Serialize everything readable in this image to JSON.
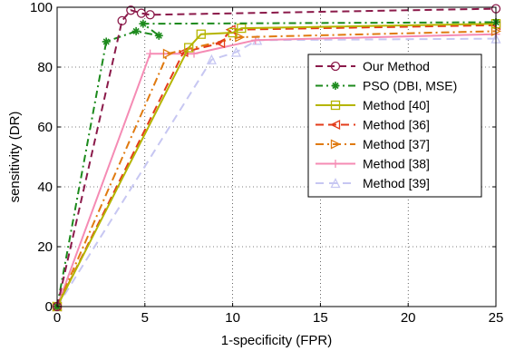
{
  "chart_data": {
    "type": "line",
    "xlabel": "1-specificity (FPR)",
    "ylabel": "sensitivity (DR)",
    "xlim": [
      0,
      25
    ],
    "ylim": [
      0,
      100
    ],
    "xticks": [
      0,
      5,
      10,
      15,
      20,
      25
    ],
    "yticks": [
      0,
      20,
      40,
      60,
      80,
      100
    ],
    "grid": true,
    "legend_position": "right",
    "series": [
      {
        "name": "Our Method",
        "color": "#8b1a4a",
        "dash": "8,5",
        "marker": "circle",
        "x": [
          0,
          3.7,
          4.2,
          4.8,
          5.3,
          25
        ],
        "y": [
          0,
          95.5,
          99,
          98,
          97.5,
          99.5
        ]
      },
      {
        "name": "PSO (DBI, MSE)",
        "color": "#1c8a1c",
        "dash": "8,4,2,4",
        "marker": "star",
        "x": [
          0,
          2.8,
          4.5,
          5.8,
          4.9,
          25
        ],
        "y": [
          0,
          88.5,
          92,
          90.5,
          94.5,
          95
        ]
      },
      {
        "name": "Method [40]",
        "color": "#b5b500",
        "dash": "",
        "marker": "square",
        "x": [
          0,
          7.5,
          8.2,
          10,
          10.5,
          25
        ],
        "y": [
          0,
          86.5,
          91,
          91.5,
          93,
          94.5
        ]
      },
      {
        "name": "Method [36]",
        "color": "#e33b1a",
        "dash": "9,5",
        "marker": "triangle-left",
        "x": [
          0,
          7.2,
          9.3,
          9.9,
          25
        ],
        "y": [
          0,
          85,
          88,
          92.5,
          94
        ]
      },
      {
        "name": "Method [37]",
        "color": "#e07a10",
        "dash": "9,4,2,4",
        "marker": "triangle-right",
        "x": [
          0,
          6.3,
          10.4,
          25
        ],
        "y": [
          0,
          84.5,
          90,
          92
        ]
      },
      {
        "name": "Method [38]",
        "color": "#f58bb4",
        "dash": "",
        "marker": "plus",
        "x": [
          0,
          5.3,
          7.8,
          11.3,
          25
        ],
        "y": [
          0,
          84.5,
          84.5,
          89,
          91
        ]
      },
      {
        "name": "Method [39]",
        "color": "#c7c7f2",
        "dash": "9,6",
        "marker": "triangle-up",
        "x": [
          0,
          8.8,
          10.2,
          11.4,
          25
        ],
        "y": [
          0,
          82.5,
          85,
          89,
          89.5
        ]
      }
    ]
  }
}
